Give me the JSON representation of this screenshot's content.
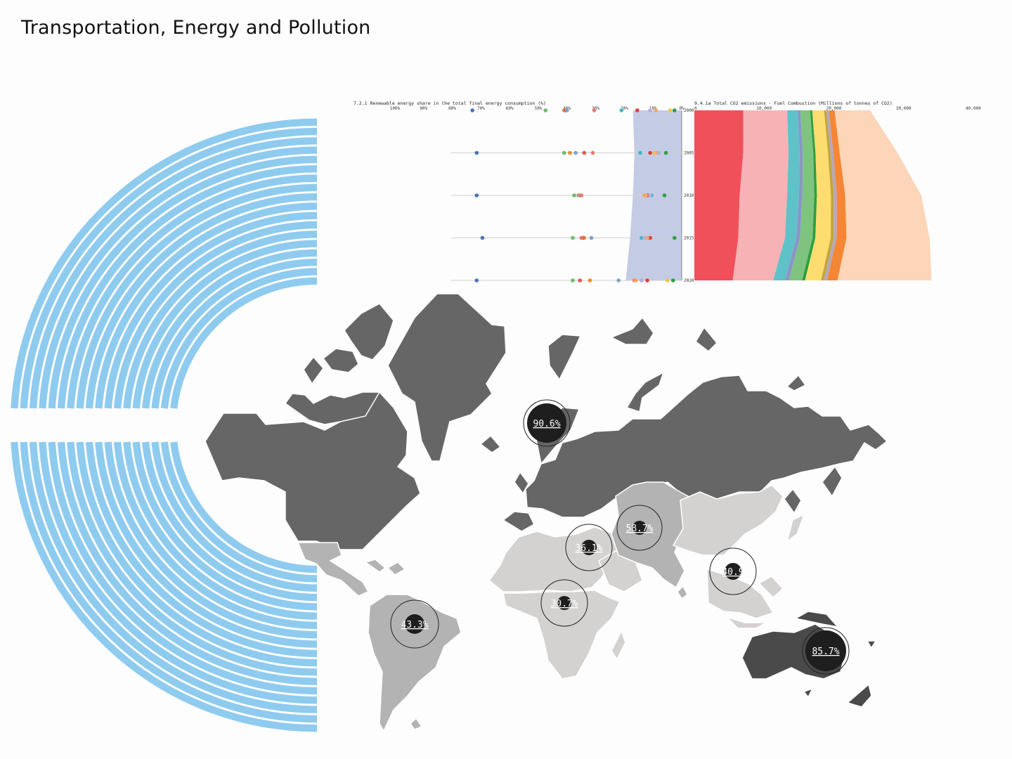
{
  "page": {
    "title": "Transportation, Energy and Pollution"
  },
  "colors": {
    "arc": "#8ecbef",
    "map_dark": "#666666",
    "map_mid": "#b3b3b3",
    "map_light": "#d4d2d1",
    "map_oceania": "#4a4a4a",
    "world_band": "#c3cbe5",
    "marker_fill": "#1e1e1e"
  },
  "chart_data": [
    {
      "type": "scatter",
      "title": "7.2.1 Renewable energy share in the total final energy consumption (%)",
      "x_axis": {
        "ticks": [
          "100%",
          "90%",
          "80%",
          "70%",
          "60%",
          "50%",
          "40%",
          "30%",
          "20%",
          "10%",
          "0%"
        ],
        "reversed": true,
        "range": [
          100,
          0
        ]
      },
      "y_axis": {
        "ticks": [
          "2000",
          "2005",
          "2010",
          "2015",
          "2020"
        ]
      },
      "world_band_percent": {
        "2000": 17,
        "2005": 16.5,
        "2010": 17,
        "2015": 18,
        "2020": 19.5
      },
      "series": [
        {
          "color": "#4a72b8",
          "values": [
            73,
            71.5,
            71.5,
            69.5,
            71.5
          ]
        },
        {
          "color": "#6dbb6b",
          "values": [
            47.5,
            41,
            37.5,
            38,
            38
          ]
        },
        {
          "color": "#f08a2e",
          "values": [
            41,
            39,
            36,
            34,
            32
          ]
        },
        {
          "color": "#e0584f",
          "values": [
            40.5,
            34,
            35,
            34.5,
            35.5
          ]
        },
        {
          "color": "#7ca3c7",
          "values": [
            40,
            37,
            35.5,
            31.5,
            22
          ]
        },
        {
          "color": "#e87b72",
          "values": [
            30.5,
            31,
            35,
            35,
            16.5
          ]
        },
        {
          "color": "#45b6c2",
          "values": [
            21,
            14.5,
            10.5,
            14,
            14
          ]
        },
        {
          "color": "#e33e3e",
          "values": [
            15.5,
            11,
            12,
            11,
            12
          ]
        },
        {
          "color": "#f5c342",
          "values": [
            4,
            9.5,
            12.5,
            12.5,
            5
          ]
        },
        {
          "color": "#f5a65a",
          "values": [
            9,
            8.5,
            13,
            12,
            16
          ]
        },
        {
          "color": "#b6b0d6",
          "values": [
            11,
            8,
            11,
            13,
            14
          ]
        },
        {
          "color": "#2ea043",
          "values": [
            2.5,
            5.5,
            6,
            2.5,
            3
          ]
        }
      ]
    },
    {
      "type": "area",
      "title": "9.4.1a Total CO2 emissions - Fuel Combustion (Millions of tonnes of CO2)",
      "x_axis": {
        "ticks": [
          "0",
          "10,000",
          "20,000",
          "30,000",
          "40,000"
        ],
        "range": [
          0,
          40000
        ]
      },
      "y_axis": {
        "ticks": [
          "2000",
          "2005",
          "2010",
          "2015",
          "2020"
        ]
      },
      "years": [
        2000,
        2005,
        2010,
        2015,
        2020
      ],
      "stacked": true,
      "series": [
        {
          "color": "#f0505a",
          "values": [
            7000,
            7000,
            6500,
            6300,
            5500
          ]
        },
        {
          "color": "#f7b2b5",
          "values": [
            6300,
            6500,
            6800,
            6700,
            5800
          ]
        },
        {
          "color": "#5ec2c8",
          "values": [
            1500,
            1600,
            1700,
            1600,
            1700
          ]
        },
        {
          "color": "#8b96c8",
          "values": [
            400,
            450,
            500,
            550,
            550
          ]
        },
        {
          "color": "#7ec47f",
          "values": [
            1400,
            1500,
            1700,
            1800,
            1900
          ]
        },
        {
          "color": "#2e9e40",
          "values": [
            300,
            320,
            380,
            400,
            420
          ]
        },
        {
          "color": "#fddd6f",
          "values": [
            1700,
            1800,
            2000,
            2200,
            2300
          ]
        },
        {
          "color": "#c3a53a",
          "values": [
            300,
            350,
            400,
            420,
            400
          ]
        },
        {
          "color": "#b5a8b7",
          "values": [
            400,
            420,
            450,
            450,
            450
          ]
        },
        {
          "color": "#f58633",
          "values": [
            800,
            900,
            1200,
            1400,
            1500
          ]
        },
        {
          "color": "#fdd5b8",
          "values": [
            5100,
            8300,
            10900,
            11900,
            13500
          ]
        }
      ]
    }
  ],
  "map": {
    "markers": [
      {
        "region": "Europe and Northern America",
        "label": "90.6%"
      },
      {
        "region": "Central and Southern Asia",
        "label": "58.7%"
      },
      {
        "region": "Northern Africa and Western Asia",
        "label": "36.1%"
      },
      {
        "region": "Eastern and South-Eastern Asia",
        "label": "40.9"
      },
      {
        "region": "Sub-Saharan Africa",
        "label": "30.7%"
      },
      {
        "region": "Latin America and the Caribbean",
        "label": "43.3%"
      },
      {
        "region": "Oceania",
        "label": "85.7%"
      }
    ]
  }
}
